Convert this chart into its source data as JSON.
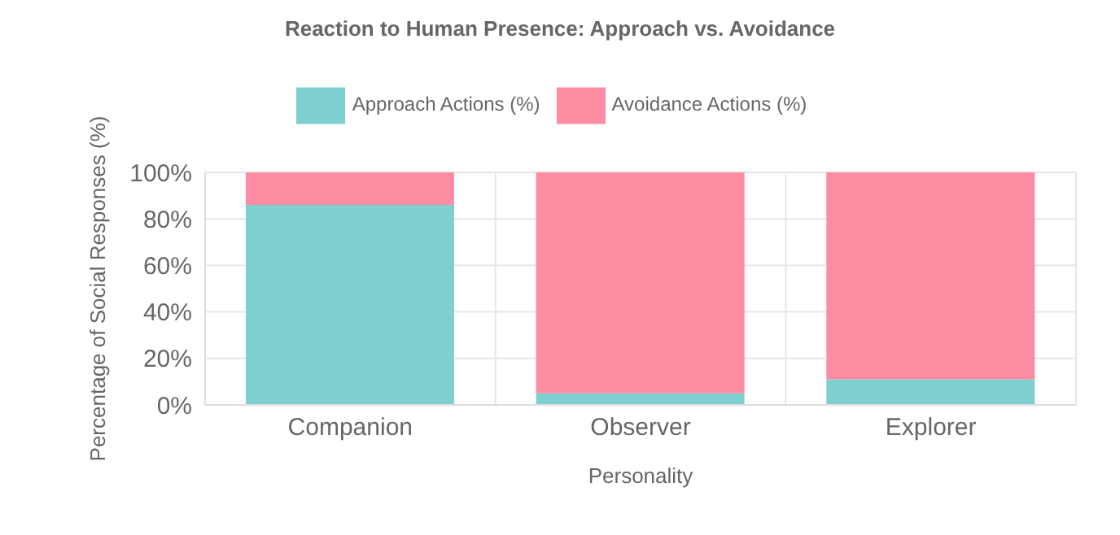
{
  "chart_data": {
    "type": "bar",
    "title": "Reaction to Human Presence: Approach vs. Avoidance",
    "xlabel": "Personality",
    "ylabel": "Percentage of Social Responses (%)",
    "categories": [
      "Companion",
      "Observer",
      "Explorer"
    ],
    "series": [
      {
        "name": "Approach Actions (%)",
        "color": "#7ecfcf",
        "values": [
          86,
          5,
          11
        ]
      },
      {
        "name": "Avoidance Actions (%)",
        "color": "#fd8ba2",
        "values": [
          14,
          95,
          89
        ]
      }
    ],
    "stacked": true,
    "ylim": [
      0,
      100
    ],
    "yticks": [
      {
        "value": 0,
        "label": "0%"
      },
      {
        "value": 20,
        "label": "20%"
      },
      {
        "value": 40,
        "label": "40%"
      },
      {
        "value": 60,
        "label": "60%"
      },
      {
        "value": 80,
        "label": "80%"
      },
      {
        "value": 100,
        "label": "100%"
      }
    ],
    "grid": true,
    "legend": "top"
  }
}
